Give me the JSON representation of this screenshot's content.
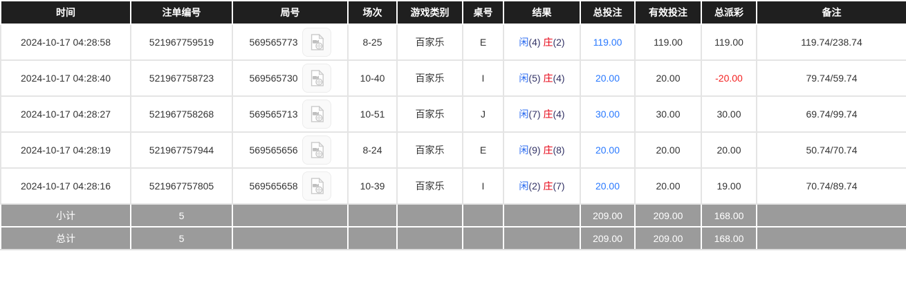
{
  "table": {
    "headers": [
      {
        "key": "time",
        "label": "时间"
      },
      {
        "key": "bet_no",
        "label": "注单编号"
      },
      {
        "key": "round_no",
        "label": "局号"
      },
      {
        "key": "session",
        "label": "场次"
      },
      {
        "key": "game_type",
        "label": "游戏类别"
      },
      {
        "key": "table_no",
        "label": "桌号"
      },
      {
        "key": "result",
        "label": "结果"
      },
      {
        "key": "total_bet",
        "label": "总投注"
      },
      {
        "key": "valid_bet",
        "label": "有效投注"
      },
      {
        "key": "total_payout",
        "label": "总派彩"
      },
      {
        "key": "remark",
        "label": "备注"
      }
    ],
    "rows": [
      {
        "time": "2024-10-17 04:28:58",
        "bet_no": "521967759519",
        "round_no": "569565773",
        "session": "8-25",
        "game_type": "百家乐",
        "table_no": "E",
        "result": {
          "player_label": "闲",
          "player_score": "(4)",
          "banker_label": "庄",
          "banker_score": "(2)"
        },
        "total_bet": "119.00",
        "valid_bet": "119.00",
        "total_payout": "119.00",
        "remark": "119.74/238.74"
      },
      {
        "time": "2024-10-17 04:28:40",
        "bet_no": "521967758723",
        "round_no": "569565730",
        "session": "10-40",
        "game_type": "百家乐",
        "table_no": "I",
        "result": {
          "player_label": "闲",
          "player_score": "(5)",
          "banker_label": "庄",
          "banker_score": "(4)"
        },
        "total_bet": "20.00",
        "valid_bet": "20.00",
        "total_payout": "-20.00",
        "remark": "79.74/59.74"
      },
      {
        "time": "2024-10-17 04:28:27",
        "bet_no": "521967758268",
        "round_no": "569565713",
        "session": "10-51",
        "game_type": "百家乐",
        "table_no": "J",
        "result": {
          "player_label": "闲",
          "player_score": "(7)",
          "banker_label": "庄",
          "banker_score": "(4)"
        },
        "total_bet": "30.00",
        "valid_bet": "30.00",
        "total_payout": "30.00",
        "remark": "69.74/99.74"
      },
      {
        "time": "2024-10-17 04:28:19",
        "bet_no": "521967757944",
        "round_no": "569565656",
        "session": "8-24",
        "game_type": "百家乐",
        "table_no": "E",
        "result": {
          "player_label": "闲",
          "player_score": "(9)",
          "banker_label": "庄",
          "banker_score": "(8)"
        },
        "total_bet": "20.00",
        "valid_bet": "20.00",
        "total_payout": "20.00",
        "remark": "50.74/70.74"
      },
      {
        "time": "2024-10-17 04:28:16",
        "bet_no": "521967757805",
        "round_no": "569565658",
        "session": "10-39",
        "game_type": "百家乐",
        "table_no": "I",
        "result": {
          "player_label": "闲",
          "player_score": "(2)",
          "banker_label": "庄",
          "banker_score": "(7)"
        },
        "total_bet": "20.00",
        "valid_bet": "20.00",
        "total_payout": "19.00",
        "remark": "70.74/89.74"
      }
    ],
    "footer_rows": [
      {
        "name": "subtotal-row",
        "label": "小计",
        "bet_count": "5",
        "total_bet": "209.00",
        "valid_bet": "209.00",
        "total_payout": "168.00"
      },
      {
        "name": "total-row",
        "label": "总计",
        "bet_count": "5",
        "total_bet": "209.00",
        "valid_bet": "209.00",
        "total_payout": "168.00"
      }
    ]
  },
  "icons": {
    "video_button": "video-file-icon"
  },
  "colors": {
    "header_bg": "#1f1f1f",
    "header_text": "#ffffff",
    "amount_blue": "#2979ff",
    "loss_red": "#f42121",
    "player_blue": "#2b6bf0",
    "banker_red": "#e60012",
    "result_score": "#333366",
    "footer_bg": "#9b9b9b",
    "row_text": "#333333",
    "border_light": "#e4e4e4"
  }
}
